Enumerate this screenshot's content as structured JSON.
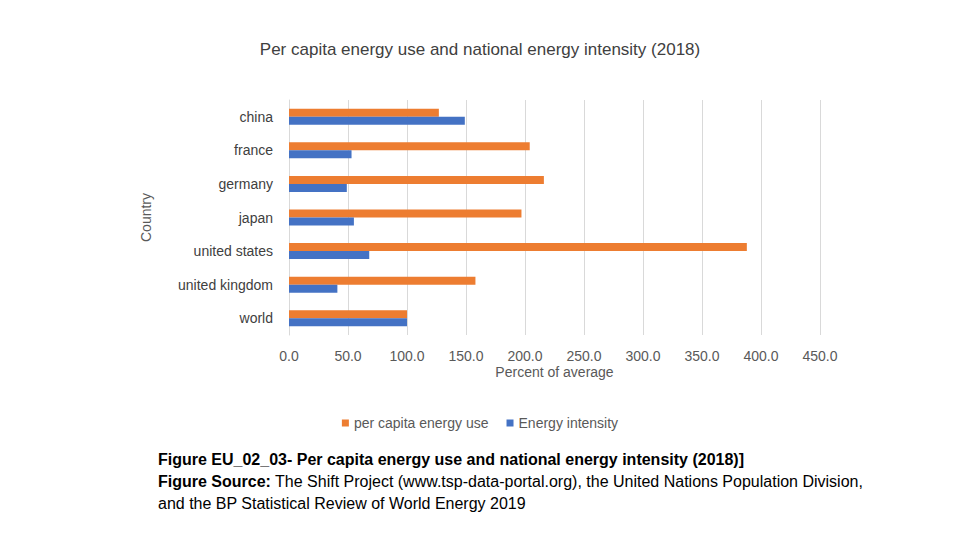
{
  "chart_data": {
    "type": "bar",
    "orientation": "horizontal",
    "title": "Per capita energy use and national energy intensity (2018)",
    "x_label": "Percent of average",
    "y_label": "Country",
    "categories": [
      "china",
      "france",
      "germany",
      "japan",
      "united states",
      "united kingdom",
      "world"
    ],
    "series": [
      {
        "name": "per capita energy use",
        "color": "#ed7d31",
        "values": [
          127,
          204,
          216,
          197,
          388,
          158,
          100
        ]
      },
      {
        "name": "Energy intensity",
        "color": "#4472c4",
        "values": [
          149,
          53,
          49,
          55,
          68,
          41,
          100
        ]
      }
    ],
    "xlim": [
      0,
      450
    ],
    "xticks": [
      {
        "value": 0,
        "label": "0.0"
      },
      {
        "value": 50,
        "label": "50.0"
      },
      {
        "value": 100,
        "label": "100.0"
      },
      {
        "value": 150,
        "label": "150.0"
      },
      {
        "value": 200,
        "label": "200.0"
      },
      {
        "value": 250,
        "label": "250.0"
      },
      {
        "value": 300,
        "label": "300.0"
      },
      {
        "value": 350,
        "label": "350.0"
      },
      {
        "value": 400,
        "label": "400.0"
      },
      {
        "value": 450,
        "label": "450.0"
      }
    ],
    "grid": true,
    "legend": "bottom",
    "caption": "Figure EU_02_03- Per capita energy use and national energy intensity (2018)]",
    "source_label": "Figure Source:",
    "source": "The Shift Project (www.tsp-data-portal.org), the United Nations Population Division, and the BP Statistical Review of World Energy 2019"
  }
}
